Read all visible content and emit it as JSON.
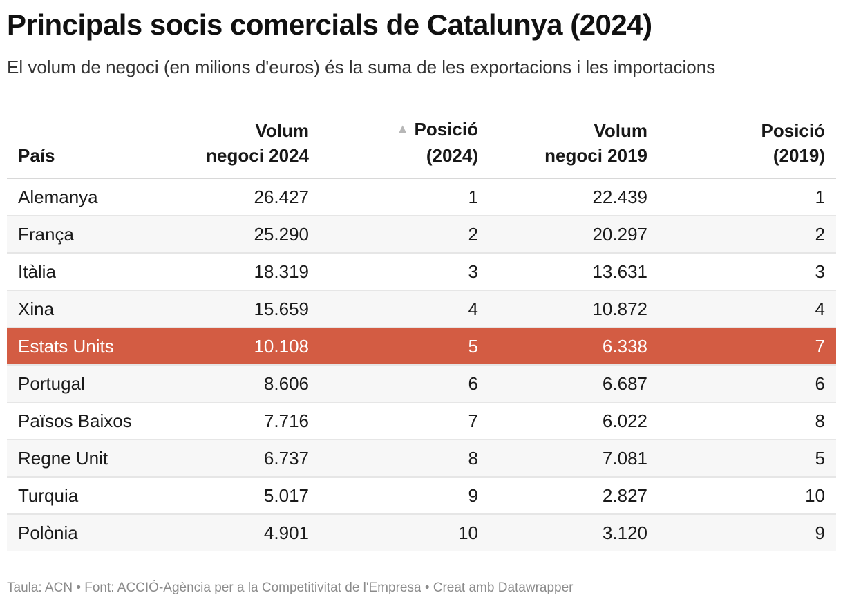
{
  "title": "Principals socis comercials de Catalunya (2024)",
  "subtitle": "El volum de negoci (en milions d'euros) és la suma de les exportacions i les importacions",
  "footer": "Taula: ACN • Font: ACCIÓ-Agència per a la Competitivitat de l'Empresa • Creat amb Datawrapper",
  "highlight_color": "#d35c43",
  "sort_icon": "triangle-up-icon",
  "chart_data": {
    "type": "table",
    "columns": [
      {
        "line1": "",
        "line2": "País",
        "align": "left"
      },
      {
        "line1": "Volum",
        "line2": "negoci 2024",
        "align": "right"
      },
      {
        "line1": "Posició",
        "line2": "(2024)",
        "align": "right",
        "sorted": "ascending"
      },
      {
        "line1": "Volum",
        "line2": "negoci 2019",
        "align": "right"
      },
      {
        "line1": "Posició",
        "line2": "(2019)",
        "align": "right"
      }
    ],
    "rows": [
      {
        "cells": [
          "Alemanya",
          "26.427",
          "1",
          "22.439",
          "1"
        ],
        "highlight": false
      },
      {
        "cells": [
          "França",
          "25.290",
          "2",
          "20.297",
          "2"
        ],
        "highlight": false
      },
      {
        "cells": [
          "Itàlia",
          "18.319",
          "3",
          "13.631",
          "3"
        ],
        "highlight": false
      },
      {
        "cells": [
          "Xina",
          "15.659",
          "4",
          "10.872",
          "4"
        ],
        "highlight": false
      },
      {
        "cells": [
          "Estats Units",
          "10.108",
          "5",
          "6.338",
          "7"
        ],
        "highlight": true
      },
      {
        "cells": [
          "Portugal",
          "8.606",
          "6",
          "6.687",
          "6"
        ],
        "highlight": false
      },
      {
        "cells": [
          "Països Baixos",
          "7.716",
          "7",
          "6.022",
          "8"
        ],
        "highlight": false
      },
      {
        "cells": [
          "Regne Unit",
          "6.737",
          "8",
          "7.081",
          "5"
        ],
        "highlight": false
      },
      {
        "cells": [
          "Turquia",
          "5.017",
          "9",
          "2.827",
          "10"
        ],
        "highlight": false
      },
      {
        "cells": [
          "Polònia",
          "4.901",
          "10",
          "3.120",
          "9"
        ],
        "highlight": false
      }
    ]
  }
}
